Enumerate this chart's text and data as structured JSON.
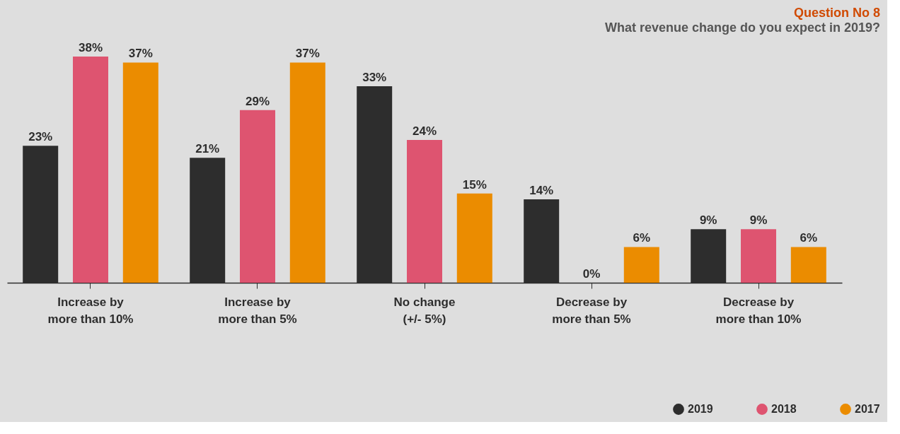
{
  "chart_data": {
    "type": "bar",
    "title": "Question No 8",
    "subtitle": "What revenue change do you expect in 2019?",
    "categories": [
      "Increase by more than 10%",
      "Increase by more than 5%",
      "No change (+/- 5%)",
      "Decrease by more than 5%",
      "Decrease by more than 10%"
    ],
    "series": [
      {
        "name": "2019",
        "color": "#2d2d2d",
        "values": [
          23,
          21,
          33,
          14,
          9
        ],
        "value_labels": [
          "23%",
          "21%",
          "33%",
          "14%",
          "9%"
        ]
      },
      {
        "name": "2018",
        "color": "#de5470",
        "values": [
          38,
          29,
          24,
          0,
          9
        ],
        "value_labels": [
          "38%",
          "29%",
          "24%",
          "0%",
          "9%"
        ]
      },
      {
        "name": "2017",
        "color": "#eb8c00",
        "values": [
          37,
          37,
          15,
          6,
          6
        ],
        "value_labels": [
          "37%",
          "37%",
          "15%",
          "6%",
          "6%"
        ]
      }
    ],
    "legend": "bottom right"
  }
}
